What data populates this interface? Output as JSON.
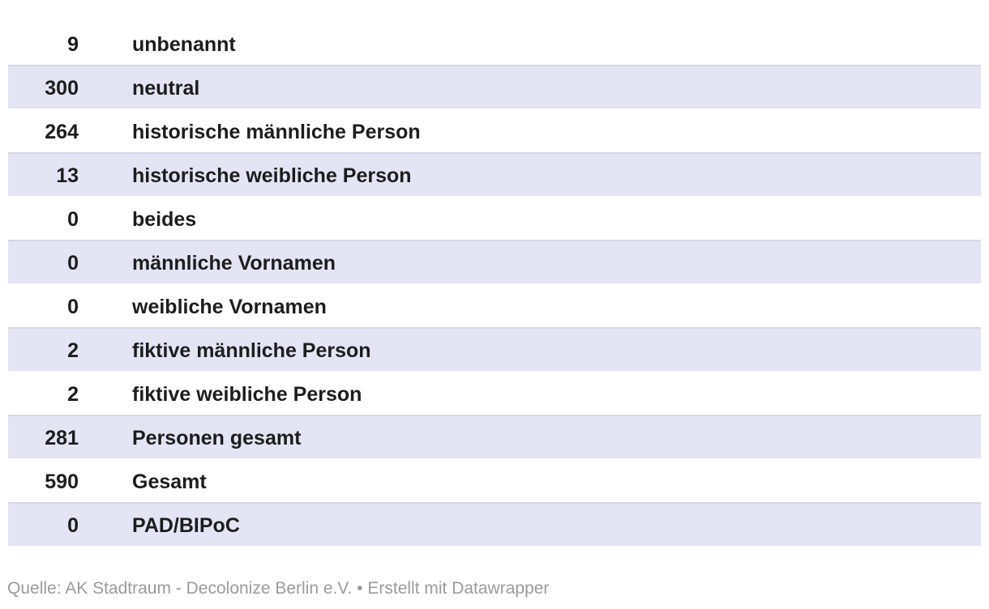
{
  "chart_data": {
    "type": "table",
    "categories": [
      "unbenannt",
      "neutral",
      "historische männliche Person",
      "historische weibliche Person",
      "beides",
      "männliche Vornamen",
      "weibliche Vornamen",
      "fiktive männliche Person",
      "fiktive weibliche Person",
      "Personen gesamt",
      "Gesamt",
      "PAD/BIPoC"
    ],
    "values": [
      9,
      300,
      264,
      13,
      0,
      0,
      0,
      2,
      2,
      281,
      590,
      0
    ],
    "rows": [
      {
        "value": "9",
        "label": "unbenannt"
      },
      {
        "value": "300",
        "label": "neutral"
      },
      {
        "value": "264",
        "label": "historische männliche Person"
      },
      {
        "value": "13",
        "label": "historische weibliche Person"
      },
      {
        "value": "0",
        "label": "beides"
      },
      {
        "value": "0",
        "label": "männliche Vornamen"
      },
      {
        "value": "0",
        "label": "weibliche Vornamen"
      },
      {
        "value": "2",
        "label": "fiktive männliche Person"
      },
      {
        "value": "2",
        "label": "fiktive weibliche Person"
      },
      {
        "value": "281",
        "label": "Personen gesamt"
      },
      {
        "value": "590",
        "label": "Gesamt"
      },
      {
        "value": "0",
        "label": "PAD/BIPoC"
      }
    ],
    "title": "",
    "layout": {
      "stripe_rows": "even rows (2nd, 4th, ...) have lavender background",
      "value_column_align": "right",
      "label_column_align": "left",
      "grid": false,
      "legend": false
    }
  },
  "footer": {
    "source_label": "Quelle:",
    "source": "AK Stadtraum - Decolonize Berlin e.V.",
    "separator": "•",
    "attribution": "Erstellt mit Datawrapper"
  },
  "colors": {
    "stripe": "#e4e4f5",
    "stripe_top_border": "#d6d6e7",
    "text": "#1d1d1d",
    "footer_text": "#9b9b9b",
    "background": "#ffffff"
  }
}
